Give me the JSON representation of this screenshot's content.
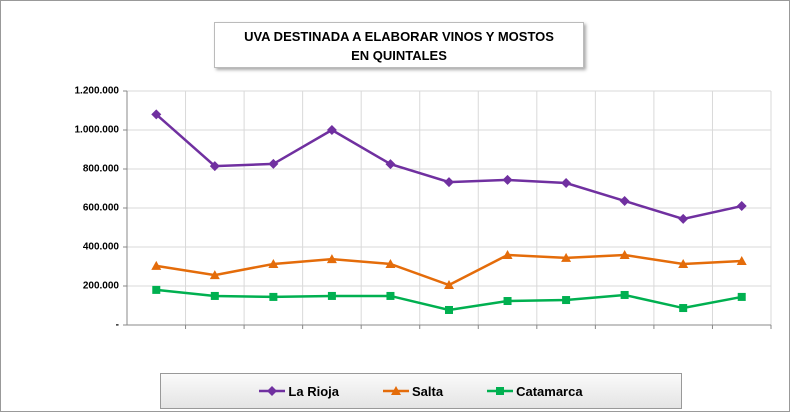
{
  "chart_data": {
    "type": "line",
    "title": "UVA DESTINADA A ELABORAR VINOS Y MOSTOS EN QUINTALES",
    "categories": [
      null,
      null,
      null,
      null,
      null,
      null,
      null,
      null,
      null,
      null,
      null
    ],
    "series": [
      {
        "name": "La Rioja",
        "color": "#7030a0",
        "marker": "diamond",
        "values": [
          1080000,
          815000,
          826000,
          1000000,
          825000,
          733000,
          744000,
          728000,
          636000,
          544000,
          610000
        ]
      },
      {
        "name": "Salta",
        "color": "#e46c0a",
        "marker": "triangle",
        "values": [
          303000,
          256000,
          313000,
          338000,
          313000,
          205000,
          359000,
          344000,
          359000,
          313000,
          328000
        ]
      },
      {
        "name": "Catamarca",
        "color": "#00b050",
        "marker": "square",
        "values": [
          180000,
          149000,
          144000,
          149000,
          149000,
          77000,
          123000,
          128000,
          154000,
          87000,
          144000
        ]
      }
    ],
    "ylim": [
      0,
      1200000
    ],
    "yticks": [
      {
        "value": 0,
        "label": "-"
      },
      {
        "value": 200000,
        "label": "200.000"
      },
      {
        "value": 400000,
        "label": "400.000"
      },
      {
        "value": 600000,
        "label": "600.000"
      },
      {
        "value": 800000,
        "label": "800.000"
      },
      {
        "value": 1000000,
        "label": "1.000.000"
      },
      {
        "value": 1200000,
        "label": "1.200.000"
      }
    ],
    "grid": true,
    "legend": "bottom"
  }
}
